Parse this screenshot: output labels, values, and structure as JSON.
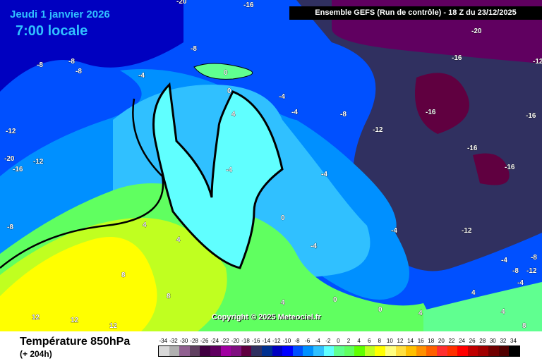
{
  "header": {
    "date": "Jeudi 1 janvier 2026",
    "local_time": "7:00 locale",
    "run_info": "Ensemble GEFS  (Run de contrôle)  -  18 Z du 23/12/2025"
  },
  "copyright": "Copyright © 2025 Meteociel.fr",
  "footer": {
    "parameter": "Température 850hPa",
    "lead_time": "(+ 204h)"
  },
  "legend": {
    "ticks": [
      "-34",
      "-32",
      "-30",
      "-28",
      "-26",
      "-24",
      "-22",
      "-20",
      "-18",
      "-16",
      "-14",
      "-12",
      "-10",
      "-8",
      "-6",
      "-4",
      "-2",
      "0",
      "2",
      "4",
      "6",
      "8",
      "10",
      "12",
      "14",
      "16",
      "18",
      "20",
      "22",
      "24",
      "26",
      "28",
      "30",
      "32",
      "34"
    ],
    "colors": [
      "#d8d8d8",
      "#b0b0b0",
      "#906090",
      "#604060",
      "#400040",
      "#600060",
      "#a000a0",
      "#801080",
      "#600040",
      "#303060",
      "#003090",
      "#0000c0",
      "#0000ff",
      "#0050ff",
      "#0090ff",
      "#30c0ff",
      "#60ffff",
      "#60ff90",
      "#60ff60",
      "#60ff00",
      "#c0ff20",
      "#ffff00",
      "#ffff80",
      "#ffe040",
      "#ffc000",
      "#ff9000",
      "#ff6000",
      "#ff3030",
      "#ff3000",
      "#ff0000",
      "#c00000",
      "#a00000",
      "#700000",
      "#500000",
      "#000000"
    ]
  },
  "map_labels": [
    "-20",
    "-16",
    "-20",
    "-16",
    "-12",
    "-8",
    "-8",
    "-8",
    "-8",
    "-4",
    "0",
    "0",
    "-4",
    "4",
    "-4",
    "-8",
    "-12",
    "-16",
    "-16",
    "-16",
    "-16",
    "-12",
    "-20",
    "-12",
    "-16",
    "-8",
    "-4",
    "0",
    "-4",
    "-4",
    "-12",
    "-8",
    "4",
    "4",
    "8",
    "8",
    "12",
    "12",
    "12",
    "4",
    "0",
    "4",
    "0",
    "4",
    "-4",
    "-4",
    "-8",
    "-12",
    "-4",
    "4",
    "8"
  ]
}
